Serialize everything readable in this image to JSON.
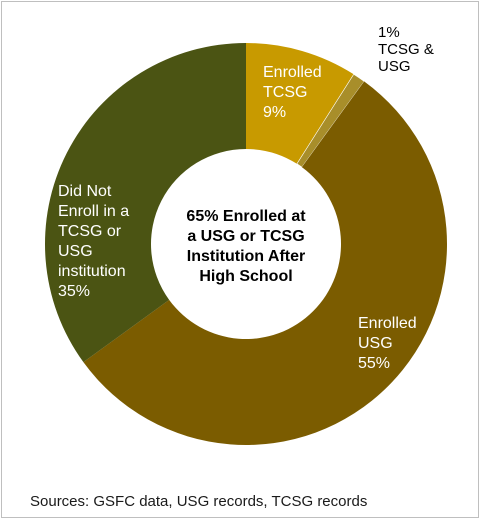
{
  "chart_data": {
    "type": "pie",
    "style": "donut",
    "center_label": [
      "65% Enrolled at",
      "a USG or TCSG",
      "Institution After",
      "High School"
    ],
    "slices": [
      {
        "name": "Enrolled TCSG",
        "value": 9,
        "color": "#c89a00",
        "label_lines": [
          "Enrolled",
          "TCSG",
          "9%"
        ],
        "label_color": "#ffffff"
      },
      {
        "name": "TCSG & USG",
        "value": 1,
        "color": "#a88e2a",
        "label_lines": [
          "1%",
          "TCSG &",
          "USG"
        ],
        "label_color": "#000000"
      },
      {
        "name": "Enrolled USG",
        "value": 55,
        "color": "#7b5c00",
        "label_lines": [
          "Enrolled",
          "USG",
          "55%"
        ],
        "label_color": "#ffffff"
      },
      {
        "name": "Did Not Enroll in a TCSG or USG institution",
        "value": 35,
        "color": "#4b5413",
        "label_lines": [
          "Did Not",
          "Enroll in a",
          "TCSG or",
          "USG",
          "institution",
          "35%"
        ],
        "label_color": "#ffffff"
      }
    ]
  },
  "footer": {
    "sources": "Sources: GSFC data, USG records, TCSG records"
  }
}
